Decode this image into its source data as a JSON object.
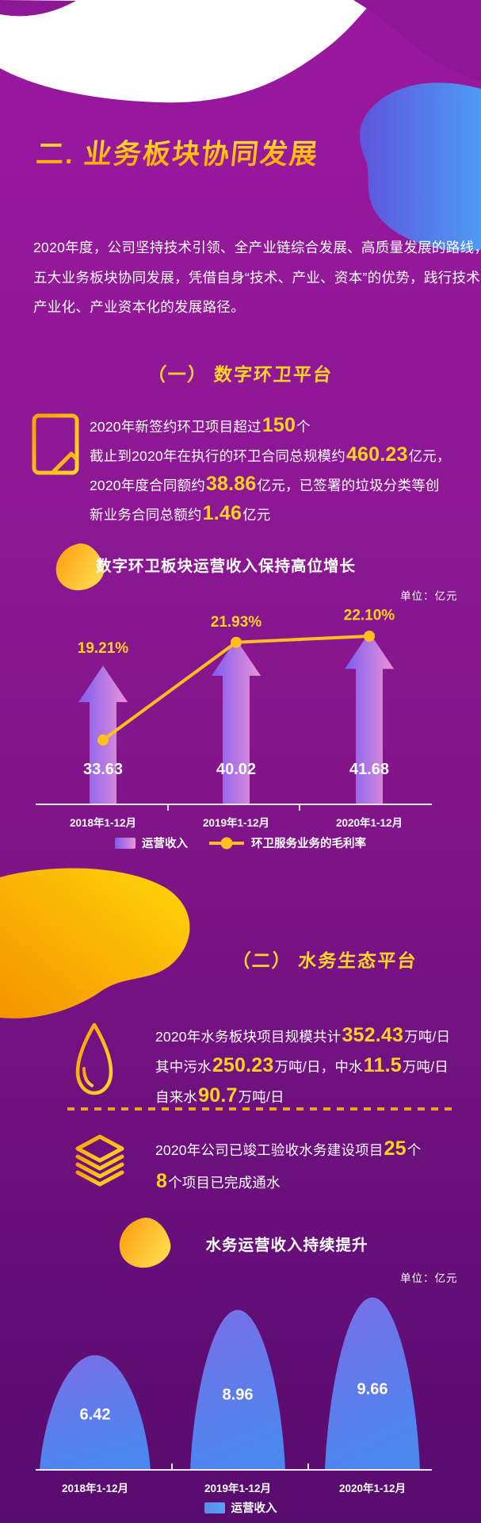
{
  "header": {
    "title": "二. 业务板块协同发展"
  },
  "intro": {
    "lines": [
      "2020年度，公司坚持技术引领、全产业链综合发展、高质量发展的路线，",
      "五大业务板块协同发展，凭借自身“技术、产业、资本”的优势，践行技术",
      "产业化、产业资本化的发展路径。"
    ]
  },
  "section1": {
    "title": "（一） 数字环卫平台",
    "stats": [
      [
        {
          "t": "2020年新签约环卫项目超过"
        },
        {
          "t": "150",
          "h": true
        },
        {
          "t": "个"
        }
      ],
      [
        {
          "t": "截止到2020年在执行的环卫合同总规模约"
        },
        {
          "t": "460.23",
          "h": true
        },
        {
          "t": "亿元，"
        }
      ],
      [
        {
          "t": "2020年度合同额约"
        },
        {
          "t": "38.86",
          "h": true
        },
        {
          "t": "亿元，已签署的垃圾分类等创"
        }
      ],
      [
        {
          "t": "新业务合同总额约"
        },
        {
          "t": "1.46",
          "h": true
        },
        {
          "t": "亿元"
        }
      ]
    ]
  },
  "section2": {
    "title": "（二） 水务生态平台",
    "water_stats": [
      [
        {
          "t": "2020年水务板块项目规模共计"
        },
        {
          "t": "352.43",
          "h": true
        },
        {
          "t": "万吨/日"
        }
      ],
      [
        {
          "t": "其中污水"
        },
        {
          "t": "250.23",
          "h": true
        },
        {
          "t": "万吨/日，中水"
        },
        {
          "t": "11.5",
          "h": true
        },
        {
          "t": "万吨/日"
        }
      ],
      [
        {
          "t": "自来水"
        },
        {
          "t": "90.7",
          "h": true
        },
        {
          "t": "万吨/日"
        }
      ]
    ],
    "project_stats": [
      [
        {
          "t": "2020年公司已竣工验收水务建设项目"
        },
        {
          "t": "25",
          "h": true
        },
        {
          "t": "个"
        }
      ],
      [
        {
          "t": "8",
          "h": true
        },
        {
          "t": "个项目已完成通水"
        }
      ]
    ]
  },
  "chart_data": [
    {
      "type": "bar",
      "title": "数字环卫板块运营收入保持高位增长",
      "unit_label": "单位：亿元",
      "categories": [
        "2018年1-12月",
        "2019年1-12月",
        "2020年1-12月"
      ],
      "series": [
        {
          "name": "运营收入",
          "type": "bar-arrow",
          "values": [
            33.63,
            40.02,
            41.68
          ]
        },
        {
          "name": "环卫服务业务的毛利率",
          "type": "line",
          "values_pct": [
            19.21,
            21.93,
            22.1
          ]
        }
      ],
      "legend_position": "bottom",
      "value_labels": "inside bars, percents above"
    },
    {
      "type": "bar",
      "title": "水务运营收入持续提升",
      "unit_label": "单位：亿元",
      "categories": [
        "2018年1-12月",
        "2019年1-12月",
        "2020年1-12月"
      ],
      "series": [
        {
          "name": "运营收入",
          "type": "dome-bar",
          "values": [
            6.42,
            8.96,
            9.66
          ]
        }
      ],
      "legend_position": "bottom",
      "value_labels": "inside domes"
    }
  ],
  "colors": {
    "accent_yellow": "#FFD21C",
    "line_yellow": "#FFC01E",
    "bar_gradient": [
      "#7B5CF1",
      "#EE92D6"
    ],
    "dome_gradient": [
      "#7A6FE6",
      "#4C86EF"
    ],
    "legend2_swatch": [
      "#5F8BE8",
      "#57A0F2"
    ],
    "background_purple": "#8C1793",
    "axis_white": "#F2E9F4"
  }
}
